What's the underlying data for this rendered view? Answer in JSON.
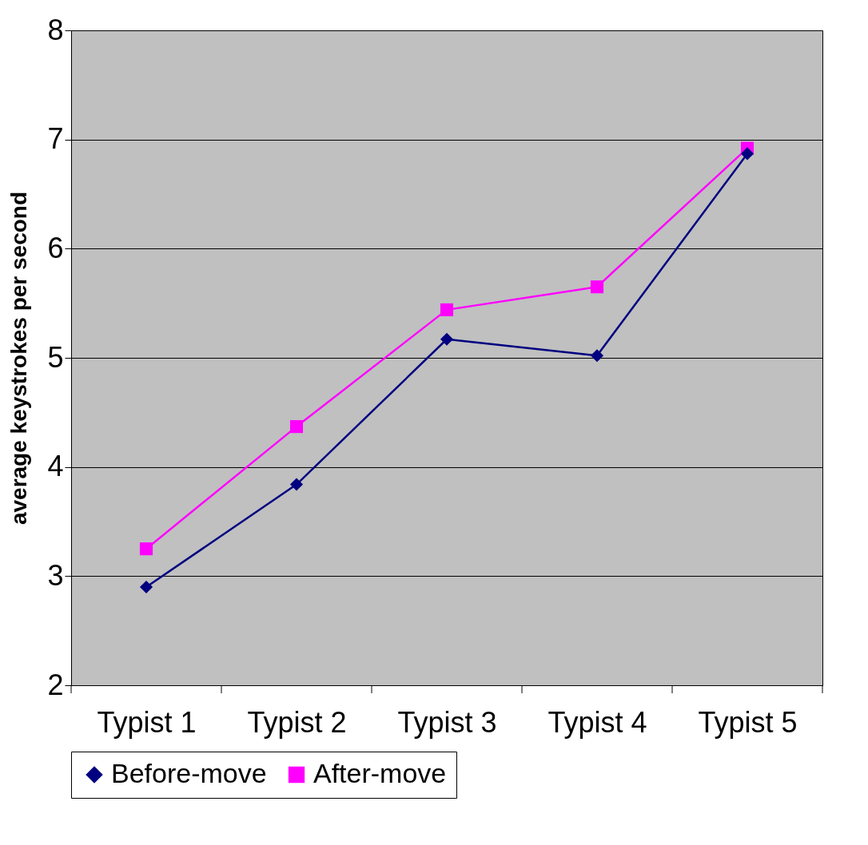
{
  "chart_data": {
    "type": "line",
    "ylabel": "average keystrokes per second",
    "categories": [
      "Typist 1",
      "Typist 2",
      "Typist 3",
      "Typist 4",
      "Typist 5"
    ],
    "series": [
      {
        "name": "Before-move",
        "color": "#000080",
        "marker": "diamond",
        "values": [
          2.9,
          3.84,
          5.17,
          5.02,
          6.87
        ]
      },
      {
        "name": "After-move",
        "color": "#ff00ff",
        "marker": "square",
        "values": [
          3.25,
          4.37,
          5.44,
          5.65,
          6.92
        ]
      }
    ],
    "ylim": [
      2,
      8
    ],
    "yticks": [
      2,
      3,
      4,
      5,
      6,
      7,
      8
    ],
    "grid": "y",
    "legend": "bottom",
    "line_style": "solid"
  }
}
